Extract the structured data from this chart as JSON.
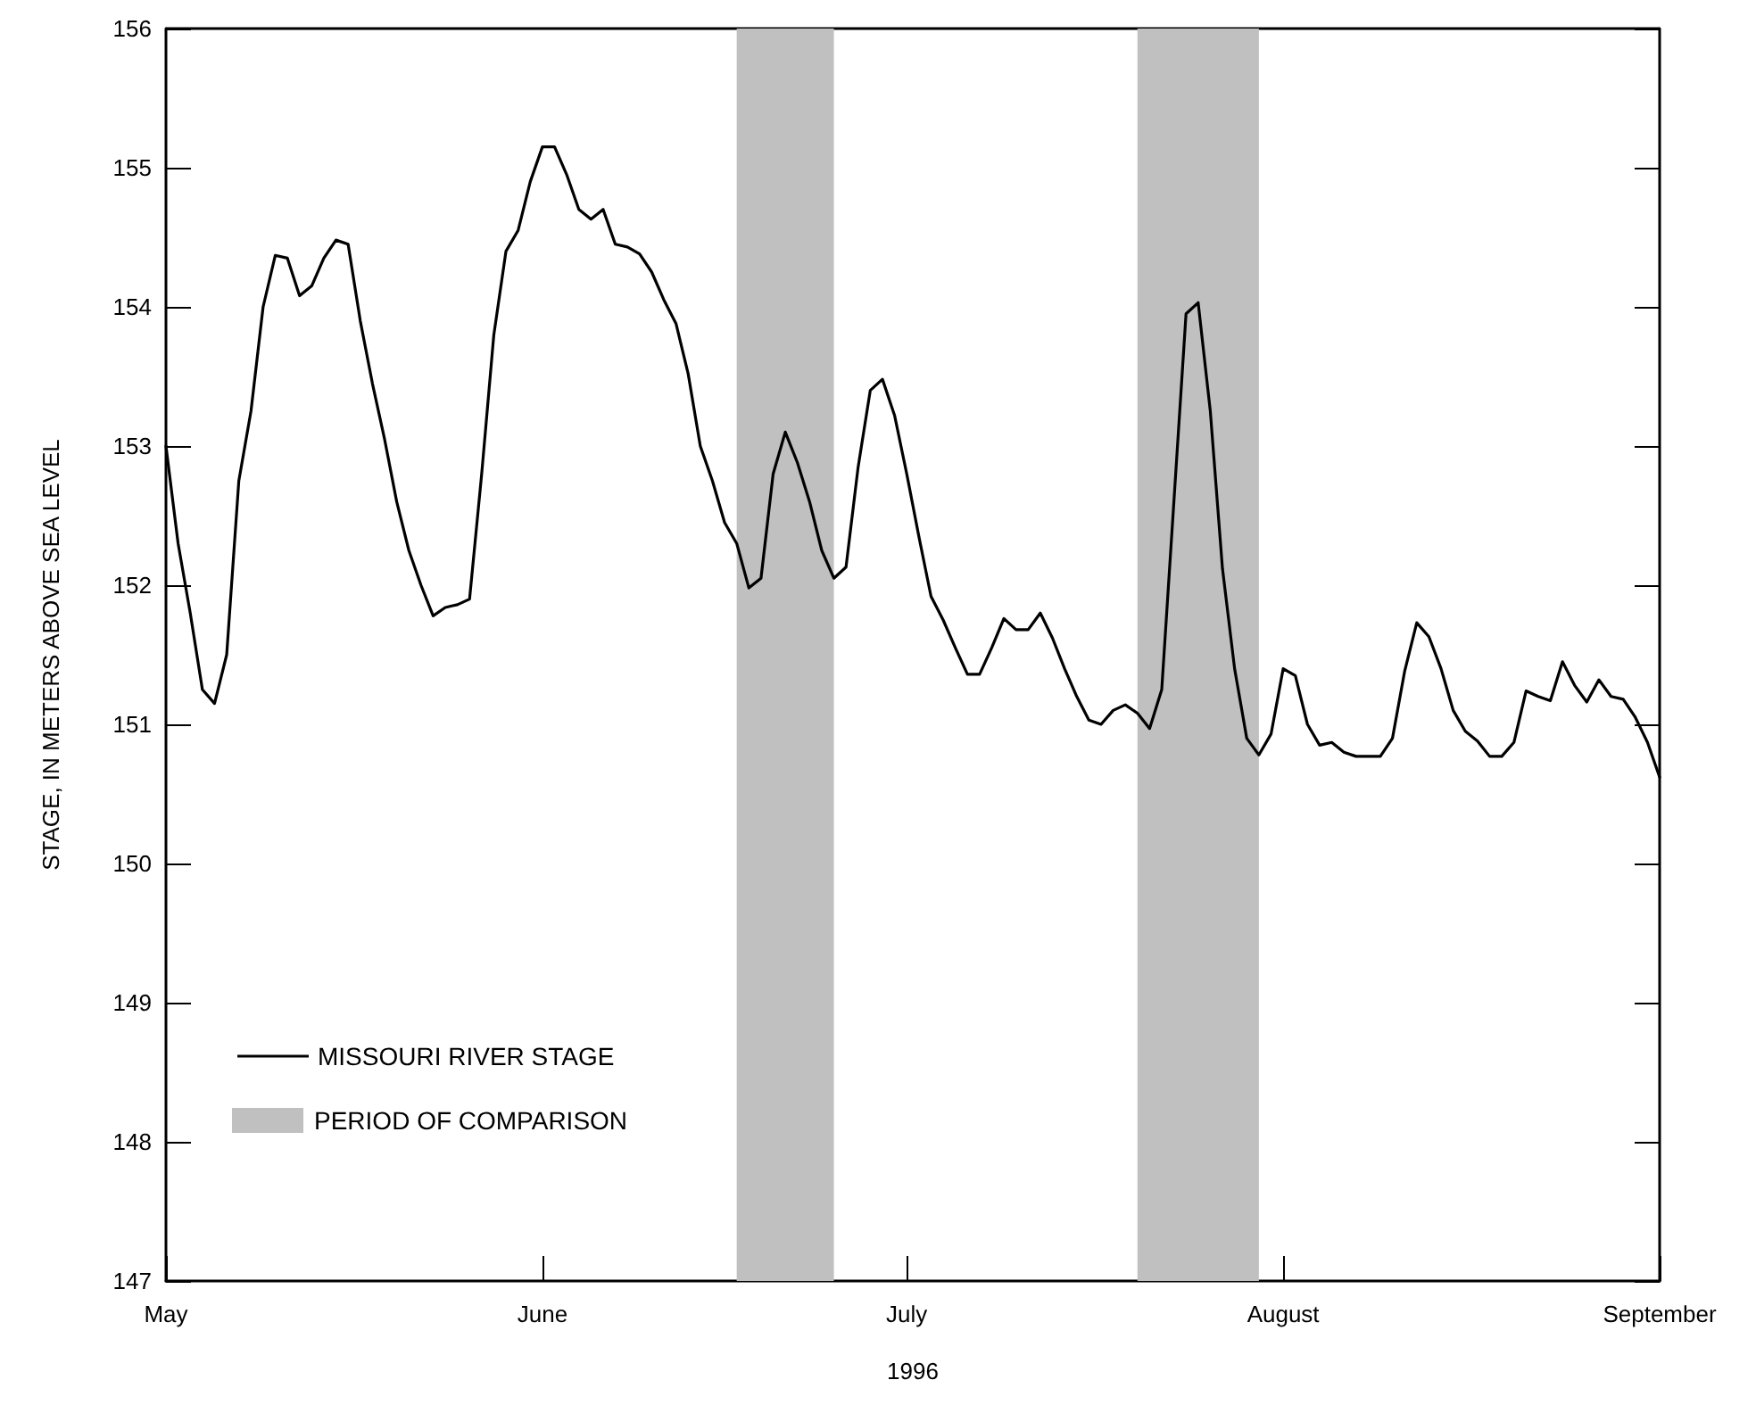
{
  "chart_data": {
    "type": "line",
    "xlabel": "1996",
    "ylabel": "STAGE, IN METERS ABOVE SEA LEVEL",
    "xlim": [
      "1996-05-01",
      "1996-09-01"
    ],
    "xticks": [
      {
        "value": "1996-05-01",
        "label": "May"
      },
      {
        "value": "1996-06-01",
        "label": "June"
      },
      {
        "value": "1996-07-01",
        "label": "July"
      },
      {
        "value": "1996-08-01",
        "label": "August"
      },
      {
        "value": "1996-09-01",
        "label": "September"
      }
    ],
    "ylim": [
      147,
      156
    ],
    "yticks": [
      147,
      148,
      149,
      150,
      151,
      152,
      153,
      154,
      155,
      156
    ],
    "grid": false,
    "legend": "bottom left",
    "line_style": "solid",
    "marker": "none",
    "annotations": [
      "PERIOD OF COMPARISON"
    ],
    "bands": [
      {
        "axis": "x",
        "from": "1996-06-17",
        "to": "1996-06-25",
        "color": "#c0c0c0"
      },
      {
        "axis": "x",
        "from": "1996-07-20",
        "to": "1996-07-30",
        "color": "#c0c0c0"
      }
    ],
    "series": [
      {
        "name": "MISSOURI RIVER STAGE",
        "color": "#000000",
        "x": [
          "1996-05-01",
          "1996-05-02",
          "1996-05-03",
          "1996-05-04",
          "1996-05-05",
          "1996-05-06",
          "1996-05-07",
          "1996-05-08",
          "1996-05-09",
          "1996-05-10",
          "1996-05-11",
          "1996-05-12",
          "1996-05-13",
          "1996-05-14",
          "1996-05-15",
          "1996-05-16",
          "1996-05-17",
          "1996-05-18",
          "1996-05-19",
          "1996-05-20",
          "1996-05-21",
          "1996-05-22",
          "1996-05-23",
          "1996-05-24",
          "1996-05-25",
          "1996-05-26",
          "1996-05-27",
          "1996-05-28",
          "1996-05-29",
          "1996-05-30",
          "1996-05-31",
          "1996-06-01",
          "1996-06-02",
          "1996-06-03",
          "1996-06-04",
          "1996-06-05",
          "1996-06-06",
          "1996-06-07",
          "1996-06-08",
          "1996-06-09",
          "1996-06-10",
          "1996-06-11",
          "1996-06-12",
          "1996-06-13",
          "1996-06-14",
          "1996-06-15",
          "1996-06-16",
          "1996-06-17",
          "1996-06-18",
          "1996-06-19",
          "1996-06-20",
          "1996-06-21",
          "1996-06-22",
          "1996-06-23",
          "1996-06-24",
          "1996-06-25",
          "1996-06-26",
          "1996-06-27",
          "1996-06-28",
          "1996-06-29",
          "1996-06-30",
          "1996-07-01",
          "1996-07-02",
          "1996-07-03",
          "1996-07-04",
          "1996-07-05",
          "1996-07-06",
          "1996-07-07",
          "1996-07-08",
          "1996-07-09",
          "1996-07-10",
          "1996-07-11",
          "1996-07-12",
          "1996-07-13",
          "1996-07-14",
          "1996-07-15",
          "1996-07-16",
          "1996-07-17",
          "1996-07-18",
          "1996-07-19",
          "1996-07-20",
          "1996-07-21",
          "1996-07-22",
          "1996-07-23",
          "1996-07-24",
          "1996-07-25",
          "1996-07-26",
          "1996-07-27",
          "1996-07-28",
          "1996-07-29",
          "1996-07-30",
          "1996-07-31",
          "1996-08-01",
          "1996-08-02",
          "1996-08-03",
          "1996-08-04",
          "1996-08-05",
          "1996-08-06",
          "1996-08-07",
          "1996-08-08",
          "1996-08-09",
          "1996-08-10",
          "1996-08-11",
          "1996-08-12",
          "1996-08-13",
          "1996-08-14",
          "1996-08-15",
          "1996-08-16",
          "1996-08-17",
          "1996-08-18",
          "1996-08-19",
          "1996-08-20",
          "1996-08-21",
          "1996-08-22",
          "1996-08-23",
          "1996-08-24",
          "1996-08-25",
          "1996-08-26",
          "1996-08-27",
          "1996-08-28",
          "1996-08-29",
          "1996-08-30",
          "1996-08-31",
          "1996-09-01"
        ],
        "values": [
          153.0,
          152.3,
          151.8,
          151.25,
          151.15,
          151.5,
          152.75,
          153.25,
          154.0,
          154.37,
          154.35,
          154.08,
          154.15,
          154.35,
          154.48,
          154.45,
          153.9,
          153.45,
          153.05,
          152.6,
          152.25,
          152.0,
          151.78,
          151.84,
          151.86,
          151.9,
          152.8,
          153.8,
          154.4,
          154.55,
          154.9,
          155.15,
          155.15,
          154.95,
          154.7,
          154.63,
          154.7,
          154.45,
          154.43,
          154.38,
          154.25,
          154.05,
          153.88,
          153.52,
          153.0,
          152.75,
          152.45,
          152.3,
          151.98,
          152.05,
          152.8,
          153.1,
          152.88,
          152.6,
          152.25,
          152.05,
          152.13,
          152.85,
          153.4,
          153.48,
          153.22,
          152.8,
          152.35,
          151.92,
          151.75,
          151.55,
          151.36,
          151.36,
          151.55,
          151.76,
          151.68,
          151.68,
          151.8,
          151.62,
          151.4,
          151.2,
          151.03,
          151.0,
          151.1,
          151.14,
          151.08,
          150.97,
          151.25,
          152.6,
          153.95,
          154.03,
          153.25,
          152.12,
          151.4,
          150.9,
          150.78,
          150.93,
          151.4,
          151.35,
          151.0,
          150.85,
          150.87,
          150.8,
          150.77,
          150.77,
          150.77,
          150.9,
          151.38,
          151.73,
          151.63,
          151.4,
          151.1,
          150.95,
          150.88,
          150.77,
          150.77,
          150.87,
          151.24,
          151.2,
          151.17,
          151.45,
          151.28,
          151.16,
          151.32,
          151.2,
          151.18,
          151.05,
          150.87,
          150.62
        ]
      }
    ]
  }
}
